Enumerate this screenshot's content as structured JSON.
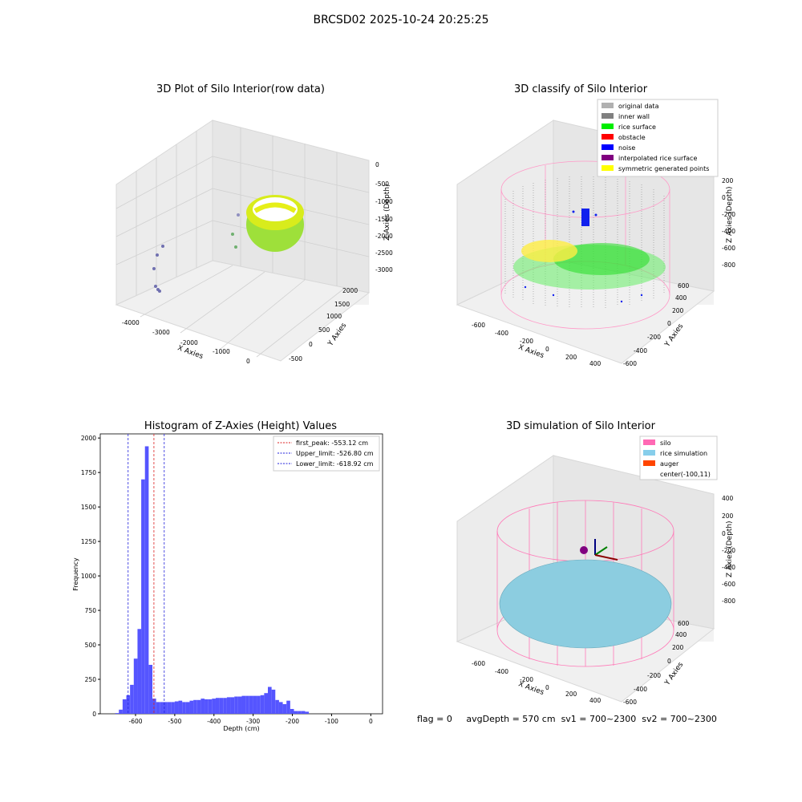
{
  "figure_title": "BRCSD02 2025-10-24 20:25:25",
  "footer": {
    "flag": "flag = 0",
    "avg_depth": "avgDepth = 570 cm",
    "sv1": "sv1 = 700~2300",
    "sv2": "sv2 = 700~2300"
  },
  "colors": {
    "histogram_bar": "#5555ff",
    "first_peak_line": "#dd2222",
    "limit_lines": "#2222dd",
    "silo": "#ff69b4",
    "rice_simulation": "#87ceeb",
    "auger": "#ff4500",
    "original_data": "#b0b0b0",
    "inner_wall": "#808080",
    "rice_surface": "#00ee00",
    "obstacle": "#ff0000",
    "noise": "#0000ff",
    "interpolated_rice_surface": "#800080",
    "symmetric_generated_points": "#ffff00"
  },
  "chart_data": [
    {
      "type": "scatter",
      "subtype": "3d",
      "title": "3D Plot of Silo Interior(row data)",
      "xlabel": "X Axies",
      "ylabel": "Y Axies",
      "zlabel": "Z Axies (Depth)",
      "x_ticks": [
        "-4000",
        "-3000",
        "-2000",
        "-1000",
        "0"
      ],
      "y_ticks": [
        "-500",
        "0",
        "500",
        "1000",
        "1500",
        "2000"
      ],
      "z_ticks": [
        "0",
        "-500",
        "-1000",
        "-1500",
        "-2000",
        "-2500",
        "-3000"
      ],
      "grid": true
    },
    {
      "type": "scatter",
      "subtype": "3d",
      "title": "3D classify of Silo Interior",
      "xlabel": "X Axies",
      "ylabel": "Y Axies",
      "zlabel": "Z Axies (Depth)",
      "x_ticks": [
        "-600",
        "-400",
        "-200",
        "0",
        "200",
        "400"
      ],
      "y_ticks": [
        "-600",
        "-400",
        "-200",
        "0",
        "200",
        "400",
        "600"
      ],
      "z_ticks": [
        "200",
        "0",
        "-200",
        "-400",
        "-600",
        "-800"
      ],
      "legend": [
        "original data",
        "inner wall",
        "rice surface",
        "obstacle",
        "noise",
        "interpolated rice surface",
        "symmetric generated points"
      ],
      "legend_placement": "top-right",
      "grid": true
    },
    {
      "type": "bar",
      "subtype": "histogram",
      "title": "Histogram of Z-Axies (Height) Values",
      "xlabel": "Depth (cm)",
      "ylabel": "Frequency",
      "xlim": [
        -690,
        30
      ],
      "ylim": [
        0,
        2030
      ],
      "x_ticks": [
        -600,
        -500,
        -400,
        -300,
        -200,
        -100,
        0
      ],
      "y_ticks": [
        0,
        250,
        500,
        750,
        1000,
        1250,
        1500,
        1750,
        2000
      ],
      "bin_width": 9.5,
      "bin_start": -652,
      "values": [
        5,
        30,
        105,
        135,
        210,
        400,
        615,
        1700,
        1940,
        355,
        110,
        85,
        85,
        85,
        85,
        85,
        90,
        95,
        85,
        85,
        95,
        100,
        100,
        110,
        105,
        105,
        110,
        115,
        115,
        115,
        120,
        120,
        125,
        125,
        130,
        130,
        130,
        130,
        130,
        135,
        150,
        195,
        175,
        100,
        85,
        70,
        95,
        35,
        20,
        20,
        20,
        15
      ],
      "vlines": [
        {
          "label": "first_peak: -553.12 cm",
          "x": -553.12,
          "color": "#dd2222"
        },
        {
          "label": "Upper_limit: -526.80 cm",
          "x": -526.8,
          "color": "#2222dd"
        },
        {
          "label": "Lower_limit: -618.92 cm",
          "x": -618.92,
          "color": "#2222dd"
        }
      ],
      "legend_placement": "top-right"
    },
    {
      "type": "scatter",
      "subtype": "3d",
      "title": "3D simulation of Silo Interior",
      "xlabel": "X Axies",
      "ylabel": "Y Axies",
      "zlabel": "Z Axies (Depth)",
      "x_ticks": [
        "-600",
        "-400",
        "-200",
        "0",
        "200",
        "400"
      ],
      "y_ticks": [
        "-600",
        "-400",
        "-200",
        "0",
        "200",
        "400",
        "600"
      ],
      "z_ticks": [
        "400",
        "200",
        "0",
        "-200",
        "-400",
        "-600",
        "-800"
      ],
      "legend": [
        "silo",
        "rice simulation",
        "auger",
        "center(-100,11)"
      ],
      "legend_placement": "top-right",
      "grid": true
    }
  ]
}
